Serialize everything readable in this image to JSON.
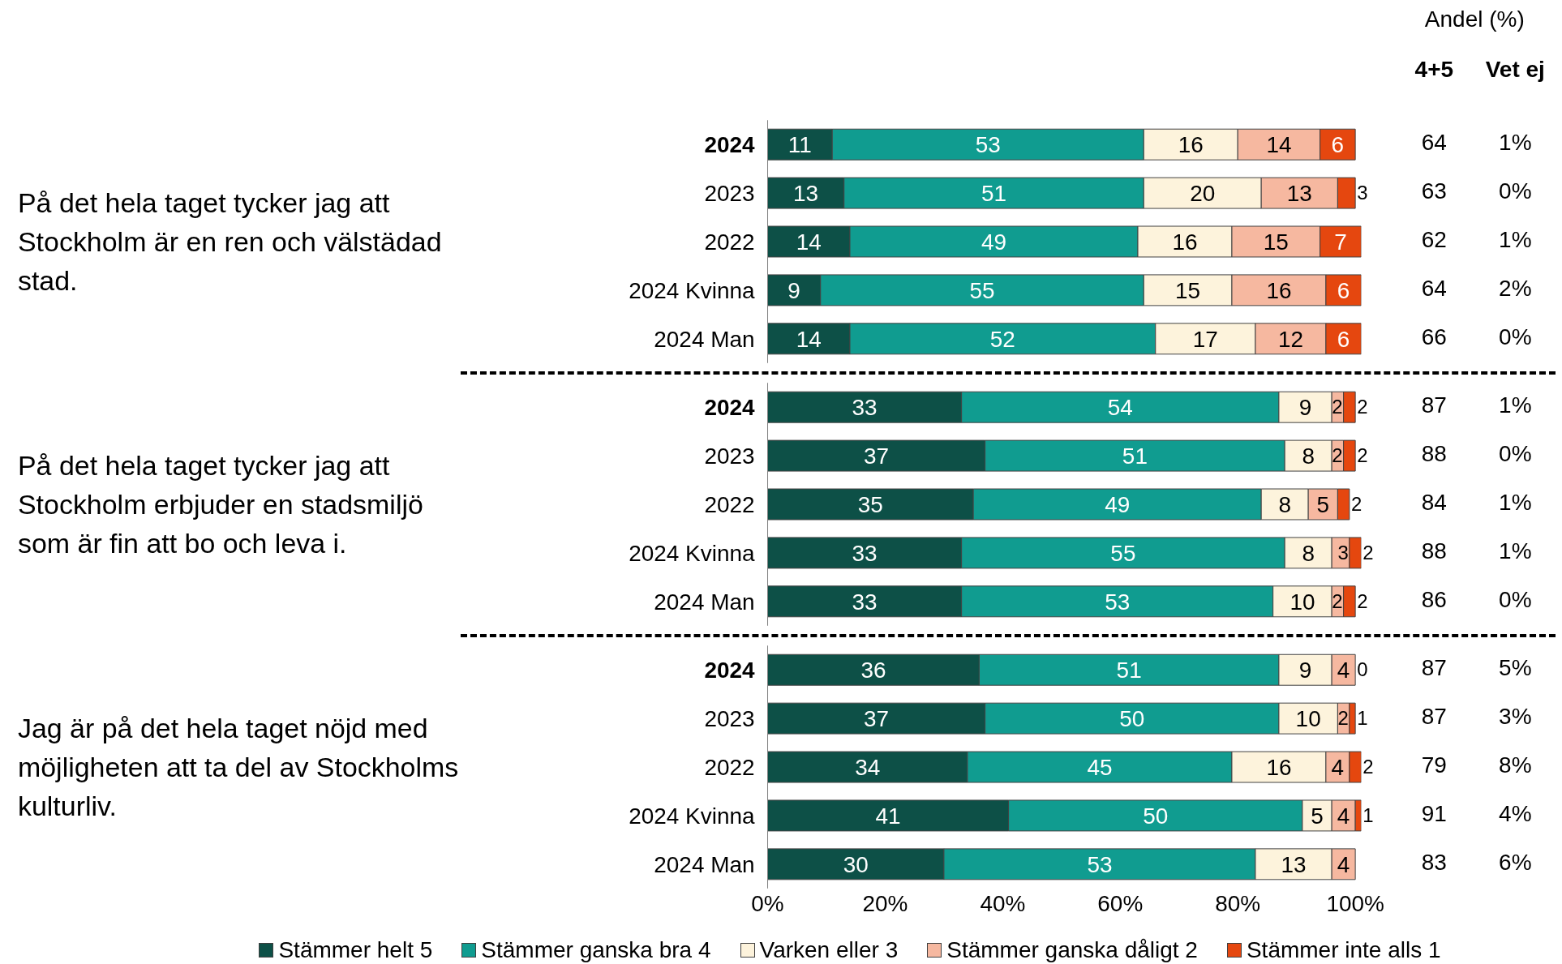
{
  "chart_data": [
    {
      "type": "bar",
      "orientation": "horizontal",
      "stacked": true,
      "ylabel": "På det hela taget tycker jag att Stockholm är en ren och välstädad stad.",
      "categories": [
        "2024",
        "2023",
        "2022",
        "2024 Kvinna",
        "2024 Man"
      ],
      "xlim": [
        0,
        101
      ],
      "data_labels": true,
      "tick_labels": "y",
      "grid": false,
      "legend": false,
      "series": [
        {
          "color": "#0d5047",
          "values": [
            11,
            13,
            14,
            9,
            14
          ]
        },
        {
          "color": "#109c90",
          "values": [
            53,
            51,
            49,
            55,
            52
          ]
        },
        {
          "color": "#fdf3dc",
          "values": [
            16,
            20,
            16,
            15,
            17
          ]
        },
        {
          "color": "#f6b8a0",
          "values": [
            14,
            13,
            15,
            16,
            12
          ]
        },
        {
          "color": "#e5470f",
          "values": [
            6,
            3,
            7,
            6,
            6
          ]
        }
      ],
      "annotations": [
        "Andel (%)",
        "4+5",
        "Vet ej",
        "64",
        "1%",
        "63",
        "0%",
        "62",
        "1%",
        "64",
        "2%",
        "66",
        "0%"
      ]
    },
    {
      "type": "bar",
      "orientation": "horizontal",
      "stacked": true,
      "ylabel": "På det hela taget tycker jag att Stockholm erbjuder en stadsmiljö som är fin att bo och leva i.",
      "categories": [
        "2024",
        "2023",
        "2022",
        "2024 Kvinna",
        "2024 Man"
      ],
      "xlim": [
        0,
        101
      ],
      "data_labels": true,
      "tick_labels": "y",
      "grid": false,
      "legend": false,
      "series": [
        {
          "color": "#0d5047",
          "values": [
            33,
            37,
            35,
            33,
            33
          ]
        },
        {
          "color": "#109c90",
          "values": [
            54,
            51,
            49,
            55,
            53
          ]
        },
        {
          "color": "#fdf3dc",
          "values": [
            9,
            8,
            8,
            8,
            10
          ]
        },
        {
          "color": "#f6b8a0",
          "values": [
            2,
            2,
            5,
            3,
            2
          ]
        },
        {
          "color": "#e5470f",
          "values": [
            2,
            2,
            2,
            2,
            2
          ]
        }
      ],
      "annotations": [
        "87",
        "1%",
        "88",
        "0%",
        "84",
        "1%",
        "88",
        "1%",
        "86",
        "0%"
      ]
    },
    {
      "type": "bar",
      "orientation": "horizontal",
      "stacked": true,
      "ylabel": "Jag är på det hela taget nöjd med möjligheten att ta del av Stockholms kulturliv.",
      "categories": [
        "2024",
        "2023",
        "2022",
        "2024 Kvinna",
        "2024 Man"
      ],
      "xlim": [
        0,
        101
      ],
      "xticks": [
        {
          "value": 0,
          "label": "0%"
        },
        {
          "value": 20,
          "label": "20%"
        },
        {
          "value": 40,
          "label": "40%"
        },
        {
          "value": 60,
          "label": "60%"
        },
        {
          "value": 80,
          "label": "80%"
        },
        {
          "value": 100,
          "label": "100%"
        }
      ],
      "data_labels": true,
      "grid": false,
      "legend": "bottom",
      "series": [
        {
          "name": "Stämmer helt 5",
          "color": "#0d5047",
          "values": [
            36,
            37,
            34,
            41,
            30
          ]
        },
        {
          "name": "Stämmer ganska bra 4",
          "color": "#109c90",
          "values": [
            51,
            50,
            45,
            50,
            53
          ]
        },
        {
          "name": "Varken eller 3",
          "color": "#fdf3dc",
          "values": [
            9,
            10,
            16,
            5,
            13
          ]
        },
        {
          "name": "Stämmer ganska dåligt 2",
          "color": "#f6b8a0",
          "values": [
            4,
            2,
            4,
            4,
            4
          ]
        },
        {
          "name": "Stämmer inte alls 1",
          "color": "#e5470f",
          "values": [
            0,
            1,
            2,
            1,
            null
          ]
        }
      ],
      "annotations": [
        "87",
        "5%",
        "87",
        "3%",
        "79",
        "8%",
        "91",
        "4%",
        "83",
        "6%"
      ]
    }
  ]
}
